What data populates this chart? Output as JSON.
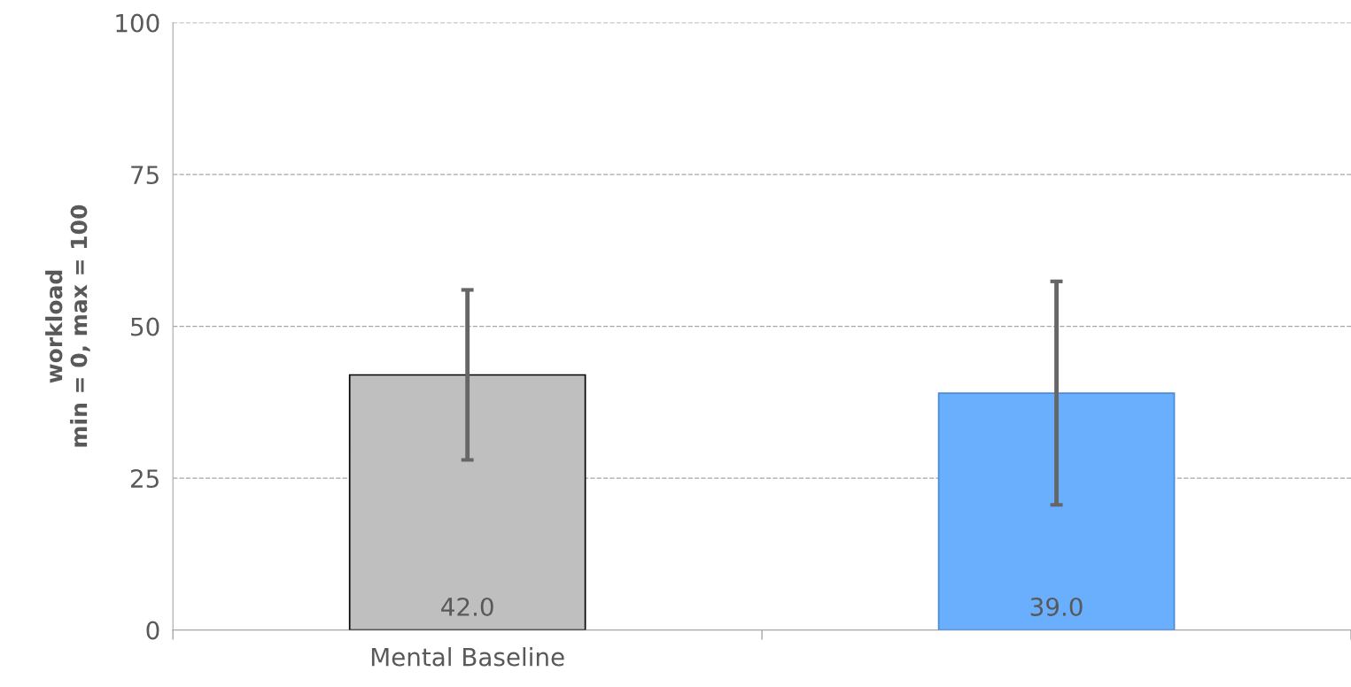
{
  "chart_data": {
    "type": "bar",
    "ylabel": "workload\nmin = 0, max = 100",
    "categories": [
      "Mental Baseline",
      null
    ],
    "values": [
      42.0,
      39.0
    ],
    "colors": [
      "#bfbfbf",
      "#6aaefe"
    ],
    "errors": [
      14,
      18.4
    ],
    "value_labels": [
      "42.0",
      "39.0"
    ],
    "ylim": [
      0,
      100
    ],
    "yticks": [
      0,
      25,
      50,
      75,
      100
    ],
    "grid": "y"
  }
}
